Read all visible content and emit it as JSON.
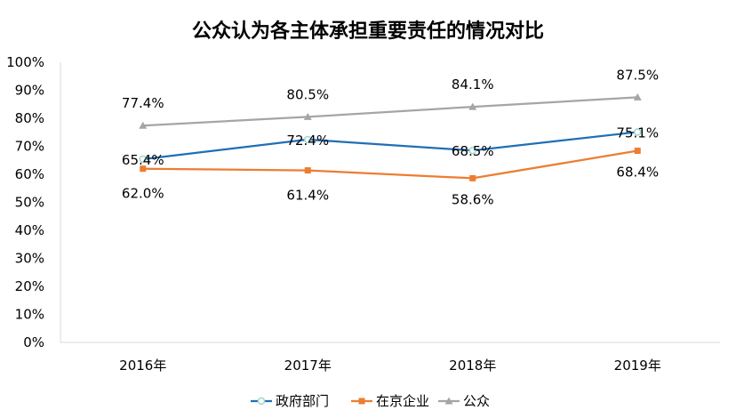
{
  "chart_data": {
    "type": "line",
    "title": "公众认为各主体承担重要责任的情况对比",
    "categories": [
      "2016年",
      "2017年",
      "2018年",
      "2019年"
    ],
    "y_ticks": [
      "0%",
      "10%",
      "20%",
      "30%",
      "40%",
      "50%",
      "60%",
      "70%",
      "80%",
      "90%",
      "100%"
    ],
    "ylim": [
      0,
      100
    ],
    "grid": false,
    "legend_position": "bottom",
    "series": [
      {
        "name": "政府部门",
        "values": [
          65.4,
          72.4,
          68.5,
          75.1
        ],
        "labels": [
          "65.4%",
          "72.4%",
          "68.5%",
          "75.1%"
        ],
        "color": "#1f6fb5",
        "marker": "circle"
      },
      {
        "name": "在京企业",
        "values": [
          62.0,
          61.4,
          58.6,
          68.4
        ],
        "labels": [
          "62.0%",
          "61.4%",
          "58.6%",
          "68.4%"
        ],
        "color": "#ed7d31",
        "marker": "square"
      },
      {
        "name": "公众",
        "values": [
          77.4,
          80.5,
          84.1,
          87.5
        ],
        "labels": [
          "77.4%",
          "80.5%",
          "84.1%",
          "87.5%"
        ],
        "color": "#a5a5a5",
        "marker": "triangle"
      }
    ]
  }
}
